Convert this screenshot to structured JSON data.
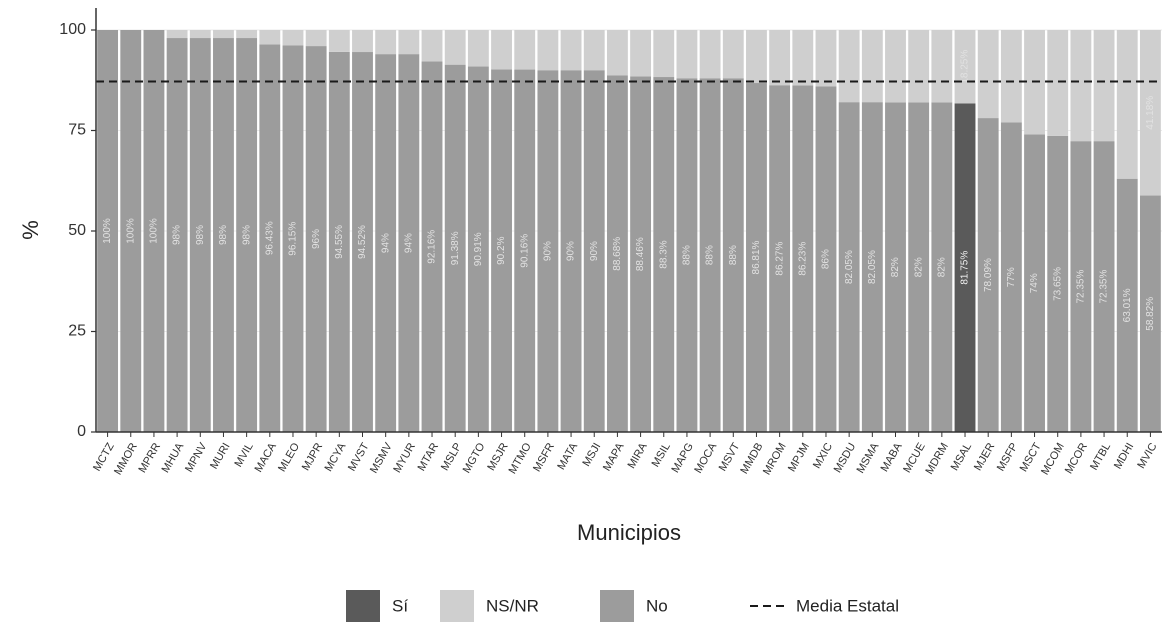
{
  "chart_data": {
    "type": "bar",
    "stacked": true,
    "title": "",
    "xlabel": "Municipios",
    "ylabel": "%",
    "ylim": [
      0,
      100
    ],
    "yticks": [
      0,
      25,
      50,
      75,
      100
    ],
    "reference_line": {
      "label": "Media Estatal",
      "value": 87.2,
      "style": "dashed"
    },
    "categories": [
      "MCTZ",
      "MMOR",
      "MPRR",
      "MHUA",
      "MPNV",
      "MURI",
      "MVIL",
      "MACA",
      "MLEO",
      "MJPR",
      "MCYA",
      "MVST",
      "MSMV",
      "MYUR",
      "MTAR",
      "MSLP",
      "MGTO",
      "MSJR",
      "MTMO",
      "MSFR",
      "MATA",
      "MSJI",
      "MAPA",
      "MIRA",
      "MSIL",
      "MAPG",
      "MOCA",
      "MSVT",
      "MMDB",
      "MROM",
      "MPJM",
      "MXIC",
      "MSDU",
      "MSMA",
      "MABA",
      "MCUE",
      "MDRM",
      "MSAL",
      "MJER",
      "MSFP",
      "MSCT",
      "MCOM",
      "MCOR",
      "MTBL",
      "MDHI",
      "MVIC"
    ],
    "highlight_category": "MSAL",
    "series": [
      {
        "name": "Sí",
        "color": "#5a5a5a",
        "values": [
          0,
          0,
          0,
          0,
          0,
          0,
          0,
          0,
          0,
          0,
          0,
          0,
          0,
          0,
          0,
          0,
          0,
          0,
          0,
          0,
          0,
          0,
          0,
          0,
          0,
          0,
          0,
          0,
          0,
          0,
          0,
          0,
          0,
          0,
          0,
          0,
          0,
          81.75,
          0,
          0,
          0,
          0,
          0,
          0,
          0,
          0
        ]
      },
      {
        "name": "No",
        "color": "#9c9c9c",
        "values": [
          100,
          100,
          100,
          98,
          98,
          98,
          98,
          96.43,
          96.15,
          96,
          94.55,
          94.52,
          94,
          94,
          92.16,
          91.38,
          90.91,
          90.2,
          90.16,
          90,
          90,
          90,
          88.68,
          88.46,
          88.3,
          88,
          88,
          88,
          86.81,
          86.27,
          86.23,
          86,
          82.05,
          82.05,
          82,
          82,
          82,
          0,
          78.09,
          77,
          74,
          73.65,
          72.35,
          72.35,
          63.01,
          58.82
        ]
      },
      {
        "name": "NS/NR",
        "color": "#cfcfcf",
        "values": [
          0,
          0,
          0,
          2,
          2,
          2,
          2,
          3.57,
          3.85,
          4,
          5.45,
          5.48,
          6,
          6,
          7.84,
          8.62,
          9.09,
          9.8,
          9.84,
          10,
          10,
          10,
          11.32,
          11.54,
          11.7,
          12,
          12,
          12,
          13.19,
          13.73,
          13.77,
          14,
          17.95,
          17.95,
          18,
          18,
          18,
          18.25,
          21.91,
          23,
          26,
          26.35,
          27.65,
          27.65,
          36.99,
          41.18
        ]
      }
    ],
    "data_labels": {
      "No": [
        "100%",
        "100%",
        "100%",
        "98%",
        "98%",
        "98%",
        "98%",
        "96.43%",
        "96.15%",
        "96%",
        "94.55%",
        "94.52%",
        "94%",
        "94%",
        "92.16%",
        "91.38%",
        "90.91%",
        "90.2%",
        "90.16%",
        "90%",
        "90%",
        "90%",
        "88.68%",
        "88.46%",
        "88.3%",
        "88%",
        "88%",
        "88%",
        "86.81%",
        "86.27%",
        "86.23%",
        "86%",
        "82.05%",
        "82.05%",
        "82%",
        "82%",
        "82%",
        "",
        "78.09%",
        "77%",
        "74%",
        "73.65%",
        "72.35%",
        "72.35%",
        "63.01%",
        "58.82%"
      ],
      "Sí": [
        "",
        "",
        "",
        "",
        "",
        "",
        "",
        "",
        "",
        "",
        "",
        "",
        "",
        "",
        "",
        "",
        "",
        "",
        "",
        "",
        "",
        "",
        "",
        "",
        "",
        "",
        "",
        "",
        "",
        "",
        "",
        "",
        "",
        "",
        "",
        "",
        "",
        "81.75%",
        "",
        "",
        "",
        "",
        "",
        "",
        "",
        ""
      ],
      "NS/NR": [
        "",
        "",
        "",
        "",
        "",
        "",
        "",
        "",
        "",
        "",
        "",
        "",
        "",
        "",
        "",
        "",
        "",
        "",
        "",
        "",
        "",
        "",
        "",
        "",
        "",
        "",
        "",
        "",
        "",
        "",
        "",
        "",
        "",
        "",
        "",
        "",
        "",
        "18.25%",
        "",
        "",
        "",
        "",
        "",
        "",
        "",
        "41.18%"
      ]
    },
    "legend": {
      "position": "bottom",
      "items": [
        {
          "label": "Sí",
          "key": "Sí"
        },
        {
          "label": "NS/NR",
          "key": "NS/NR"
        },
        {
          "label": "No",
          "key": "No"
        },
        {
          "label": "Media Estatal",
          "key": "line"
        }
      ]
    },
    "grid": true
  }
}
